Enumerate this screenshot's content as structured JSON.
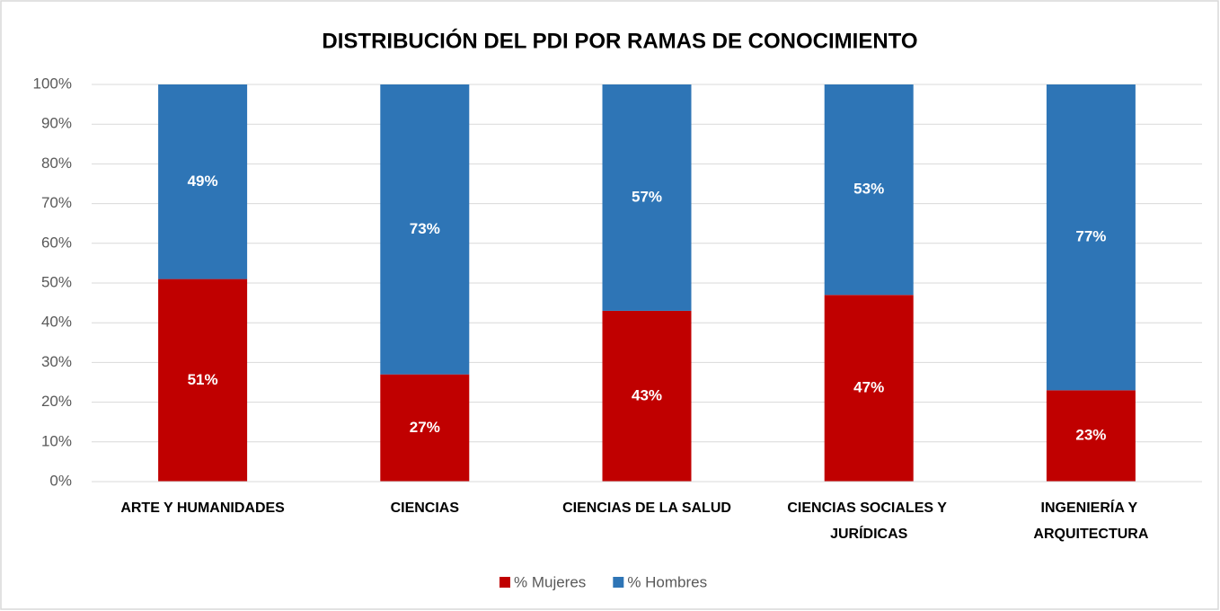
{
  "chart_data": {
    "type": "stacked_bar",
    "title": "DISTRIBUCIÓN DEL PDI POR RAMAS DE CONOCIMIENTO",
    "categories": [
      "ARTE Y HUMANIDADES",
      "CIENCIAS",
      "CIENCIAS DE LA SALUD",
      "CIENCIAS SOCIALES Y JURÍDICAS",
      "INGENIERÍA Y ARQUITECTURA"
    ],
    "series": [
      {
        "name": "% Mujeres",
        "color": "#c00000",
        "values": [
          51,
          27,
          43,
          47,
          23
        ],
        "value_labels": [
          "51%",
          "27%",
          "43%",
          "47%",
          "23%"
        ]
      },
      {
        "name": "% Hombres",
        "color": "#2e75b6",
        "values": [
          49,
          73,
          57,
          53,
          77
        ],
        "value_labels": [
          "49%",
          "73%",
          "57%",
          "53%",
          "77%"
        ]
      }
    ],
    "ylim": [
      0,
      100
    ],
    "yticks": [
      {
        "value": 0,
        "label": "0%"
      },
      {
        "value": 10,
        "label": "10%"
      },
      {
        "value": 20,
        "label": "20%"
      },
      {
        "value": 30,
        "label": "30%"
      },
      {
        "value": 40,
        "label": "40%"
      },
      {
        "value": 50,
        "label": "50%"
      },
      {
        "value": 60,
        "label": "60%"
      },
      {
        "value": 70,
        "label": "70%"
      },
      {
        "value": 80,
        "label": "80%"
      },
      {
        "value": 90,
        "label": "90%"
      },
      {
        "value": 100,
        "label": "100%"
      }
    ],
    "grid": true,
    "legend": "bottom"
  }
}
